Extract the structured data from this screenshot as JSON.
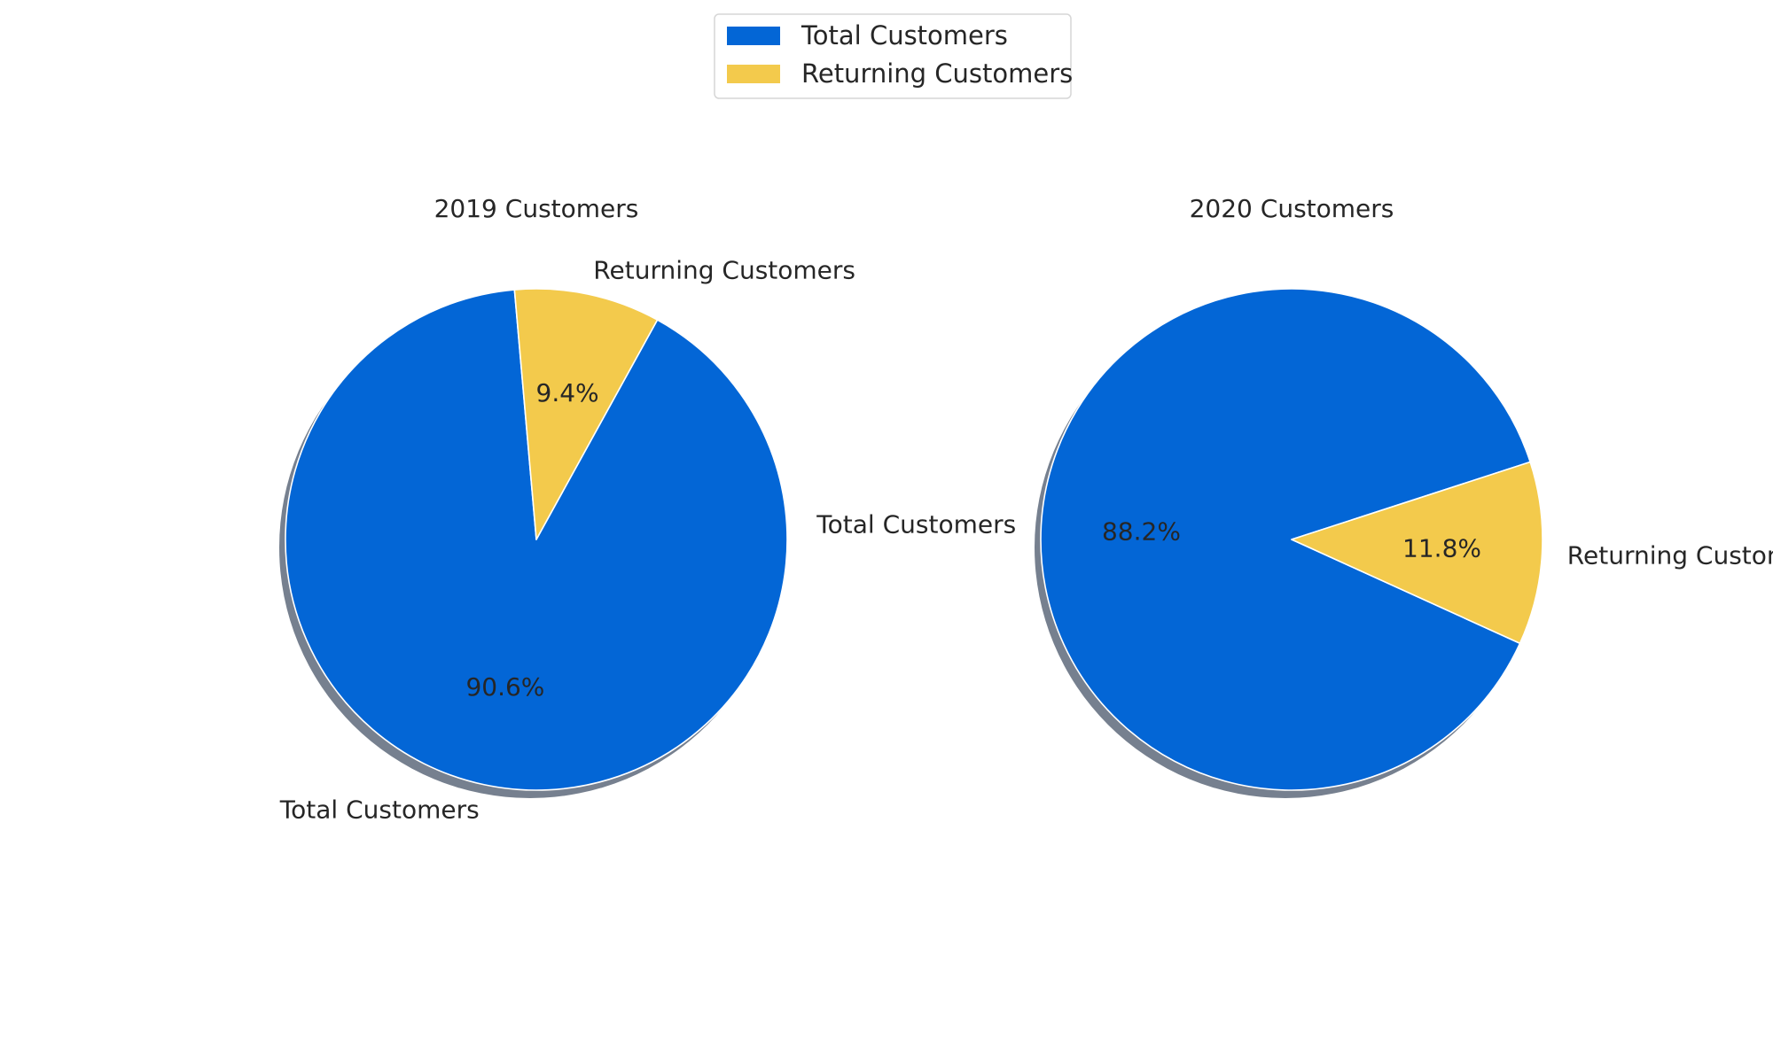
{
  "chart_data": [
    {
      "type": "pie",
      "title": "2019 Customers",
      "categories": [
        "Total Customers",
        "Returning Customers"
      ],
      "values": [
        90.6,
        9.4
      ],
      "autopct_labels": [
        "90.6%",
        "9.4%"
      ],
      "shadow": true,
      "start_angle_deg": 95
    },
    {
      "type": "pie",
      "title": "2020 Customers",
      "categories": [
        "Total Customers",
        "Returning Customers"
      ],
      "values": [
        88.2,
        11.8
      ],
      "autopct_labels": [
        "88.2%",
        "11.8%"
      ],
      "shadow": true,
      "start_angle_deg": 18
    }
  ],
  "legend": {
    "placement": "top-center",
    "entries": [
      "Total Customers",
      "Returning Customers"
    ]
  },
  "colors": {
    "total": "#0366d6",
    "returning": "#f3ca4c",
    "shadow": "#76808f",
    "edge": "#ffffff"
  }
}
